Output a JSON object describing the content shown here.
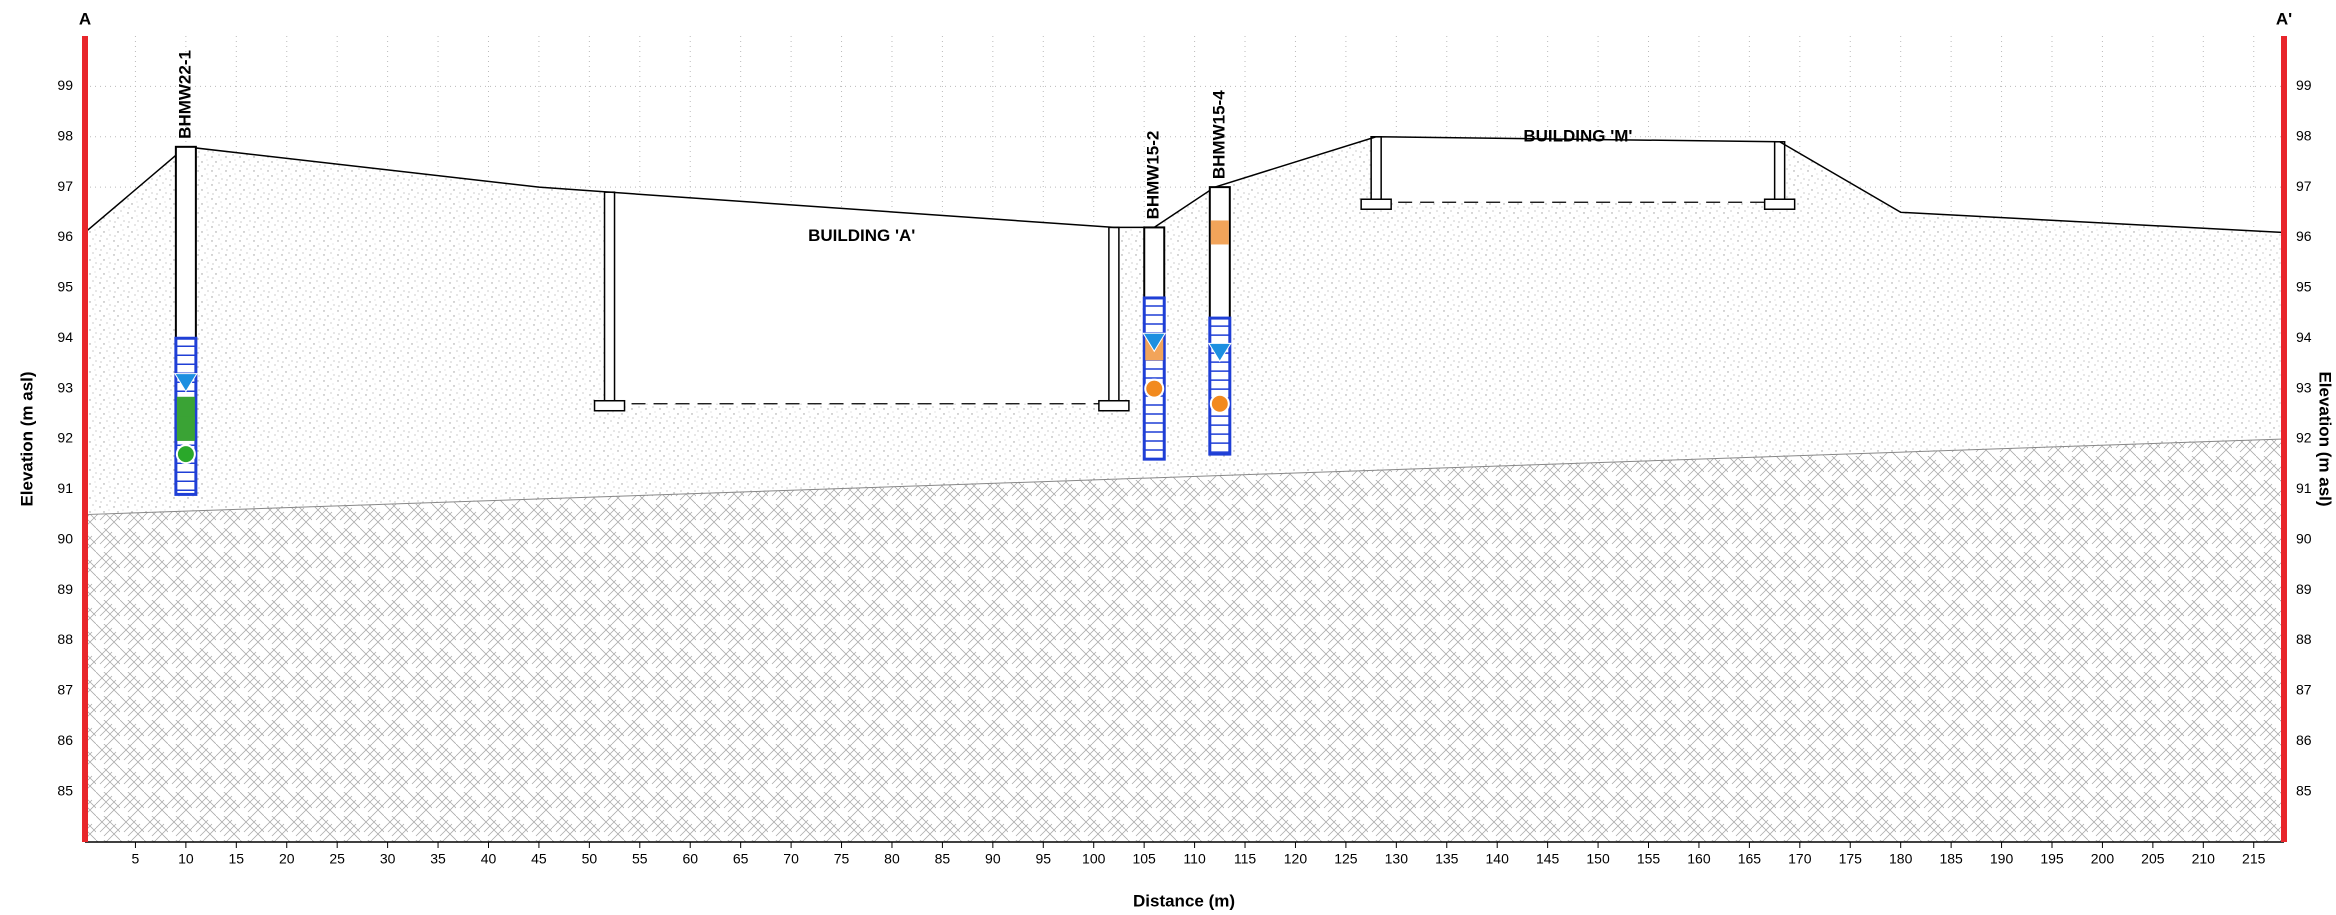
{
  "chart_data": {
    "type": "cross-section",
    "xlabel": "Distance (m)",
    "ylabel": "Elevation (m asl)",
    "y2label": "Elevation (m asl)",
    "section_start": "A",
    "section_end": "A'",
    "xlim": [
      0,
      218
    ],
    "ylim": [
      84,
      100
    ],
    "xticks": [
      5,
      10,
      15,
      20,
      25,
      30,
      35,
      40,
      45,
      50,
      55,
      60,
      65,
      70,
      75,
      80,
      85,
      90,
      95,
      100,
      105,
      110,
      115,
      120,
      125,
      130,
      135,
      140,
      145,
      150,
      155,
      160,
      165,
      170,
      175,
      180,
      185,
      190,
      195,
      200,
      205,
      210,
      215
    ],
    "yticks": [
      85,
      86,
      87,
      88,
      89,
      90,
      91,
      92,
      93,
      94,
      95,
      96,
      97,
      98,
      99
    ],
    "grid": true,
    "ground_surface": {
      "x": [
        0,
        10,
        45,
        52,
        102,
        106,
        112,
        128,
        168,
        180,
        218
      ],
      "y": [
        96.1,
        97.8,
        97.0,
        96.9,
        96.2,
        96.2,
        97.0,
        98.0,
        97.9,
        96.5,
        96.1
      ]
    },
    "bedrock_contact": {
      "x": [
        0,
        218
      ],
      "y": [
        90.5,
        92.0
      ]
    },
    "boreholes": [
      {
        "name": "BHMW22-1",
        "x": 10,
        "top": 97.8,
        "bottom": 90.9,
        "screen_top": 94.0,
        "screen_bottom": 90.9,
        "water_level": 93.1,
        "samples": [
          {
            "elev": 92.6,
            "shape": "square",
            "color": "#3aa335"
          },
          {
            "elev": 92.2,
            "shape": "square",
            "color": "#3aa335"
          },
          {
            "elev": 91.7,
            "shape": "circle",
            "color": "#2aa82a"
          }
        ]
      },
      {
        "name": "BHMW15-2",
        "x": 106,
        "top": 96.2,
        "bottom": 91.6,
        "screen_top": 94.8,
        "screen_bottom": 91.6,
        "water_level": 93.9,
        "samples": [
          {
            "elev": 93.8,
            "shape": "square",
            "color": "#f2a45a"
          },
          {
            "elev": 93.0,
            "shape": "circle",
            "color": "#f28a1e"
          }
        ]
      },
      {
        "name": "BHMW15-4",
        "x": 112.5,
        "top": 97.0,
        "bottom": 91.7,
        "screen_top": 94.4,
        "screen_bottom": 91.7,
        "water_level": 93.7,
        "samples": [
          {
            "elev": 96.1,
            "shape": "square",
            "color": "#f2a45a"
          },
          {
            "elev": 92.7,
            "shape": "circle",
            "color": "#f28a1e"
          }
        ]
      }
    ],
    "buildings": [
      {
        "label": "BUILDING 'A'",
        "x": [
          52,
          102
        ],
        "top": [
          96.9,
          96.2
        ],
        "footing": 92.7
      },
      {
        "label": "BUILDING 'M'",
        "x": [
          128,
          168
        ],
        "top": [
          98.0,
          97.9
        ],
        "footing": 96.7
      }
    ],
    "colors": {
      "section_line": "#e8262b",
      "screen": "#1f3fd6",
      "water_level": "#1c8fe0"
    }
  }
}
